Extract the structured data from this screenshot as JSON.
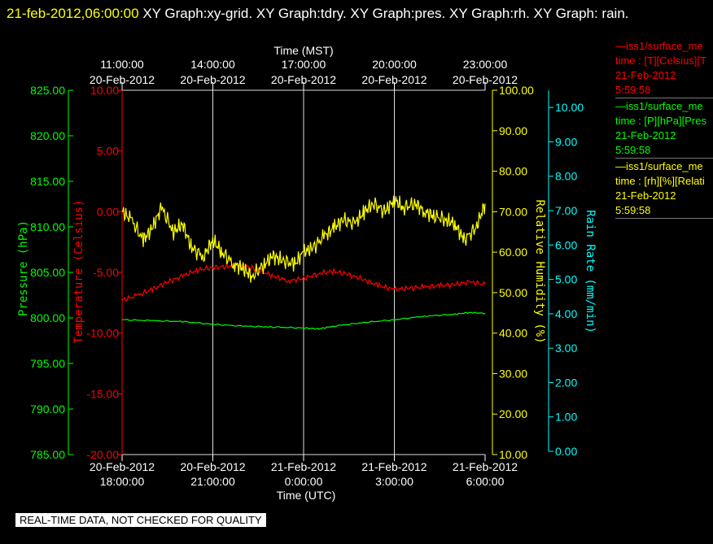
{
  "title": {
    "timestamp": "21-feb-2012,06:00:00",
    "text": " XY Graph:xy-grid.  XY Graph:tdry.  XY Graph:pres.  XY Graph:rh.  XY Graph: rain."
  },
  "banner": "REAL-TIME DATA, NOT CHECKED FOR QUALITY",
  "legend": [
    {
      "line1": "—iss1/surface_me",
      "line2": "time : [T][Celsius][T",
      "date": "21-Feb-2012",
      "time": "5:59:58",
      "color": "#ff0000"
    },
    {
      "line1": "—iss1/surface_me",
      "line2": "time : [P][hPa][Pres",
      "date": "21-Feb-2012",
      "time": "5:59:58",
      "color": "#00ff00"
    },
    {
      "line1": "—iss1/surface_me",
      "line2": "time : [rh][%][Relati",
      "date": "21-Feb-2012",
      "time": "5:59:58",
      "color": "#ffff00"
    }
  ],
  "chart_data": {
    "type": "line",
    "xlabel_top": "Time (MST)",
    "xlabel_bottom": "Time (UTC)",
    "x_range_utc": [
      "20-Feb-2012 18:00:00",
      "21-Feb-2012 6:00:00"
    ],
    "top_ticks": [
      {
        "time": "11:00:00",
        "date": "20-Feb-2012"
      },
      {
        "time": "14:00:00",
        "date": "20-Feb-2012"
      },
      {
        "time": "17:00:00",
        "date": "20-Feb-2012"
      },
      {
        "time": "20:00:00",
        "date": "20-Feb-2012"
      },
      {
        "time": "23:00:00",
        "date": "20-Feb-2012"
      }
    ],
    "bottom_ticks": [
      {
        "date": "20-Feb-2012",
        "time": "18:00:00"
      },
      {
        "date": "20-Feb-2012",
        "time": "21:00:00"
      },
      {
        "date": "21-Feb-2012",
        "time": "0:00:00"
      },
      {
        "date": "21-Feb-2012",
        "time": "3:00:00"
      },
      {
        "date": "21-Feb-2012",
        "time": "6:00:00"
      }
    ],
    "axes": {
      "pressure": {
        "label": "Pressure (hPa)",
        "color": "#00ff00",
        "range": [
          785,
          825
        ],
        "ticks": [
          "785.00",
          "790.00",
          "795.00",
          "800.00",
          "805.00",
          "810.00",
          "815.00",
          "820.00",
          "825.00"
        ]
      },
      "temperature": {
        "label": "Temperature (Celsius)",
        "color": "#ff0000",
        "range": [
          -20,
          10
        ],
        "ticks": [
          "-20.00",
          "-15.00",
          "-10.00",
          "-5.00",
          "0.00",
          "5.00",
          "10.00"
        ]
      },
      "humidity": {
        "label": "Relative Humidity (%)",
        "color": "#ffff00",
        "range": [
          10,
          100
        ],
        "ticks": [
          "10.00",
          "20.00",
          "30.00",
          "40.00",
          "50.00",
          "60.00",
          "70.00",
          "80.00",
          "90.00",
          "100.00"
        ]
      },
      "rain": {
        "label": "Rain Rate (mm/min)",
        "color": "#00ffff",
        "range": [
          0,
          10.5
        ],
        "ticks": [
          "0.00",
          "1.00",
          "2.00",
          "3.00",
          "4.00",
          "5.00",
          "6.00",
          "7.00",
          "8.00",
          "9.00",
          "10.00"
        ]
      }
    },
    "series": [
      {
        "name": "T",
        "color": "#ff0000",
        "axis": "temperature",
        "x_hours": [
          0,
          0.5,
          1,
          1.5,
          2,
          2.5,
          3,
          3.5,
          4,
          4.5,
          5,
          5.5,
          6,
          6.5,
          7,
          7.5,
          8,
          8.5,
          9,
          9.5,
          10,
          10.5,
          11,
          11.5,
          12
        ],
        "values": [
          -7.3,
          -6.9,
          -6.4,
          -5.8,
          -5.3,
          -4.8,
          -4.6,
          -4.5,
          -4.4,
          -4.8,
          -5.3,
          -5.7,
          -5.5,
          -5.1,
          -4.9,
          -5.2,
          -5.6,
          -6.1,
          -6.4,
          -6.3,
          -6.2,
          -6.1,
          -6.0,
          -5.8,
          -6.0
        ]
      },
      {
        "name": "P",
        "color": "#00ff00",
        "axis": "pressure",
        "x_hours": [
          0,
          1,
          2,
          3,
          4,
          5,
          6,
          6.5,
          7,
          8,
          9,
          10,
          11,
          11.5,
          12
        ],
        "values": [
          799.8,
          799.7,
          799.6,
          799.3,
          799.1,
          799.0,
          798.9,
          798.8,
          799.1,
          799.5,
          799.8,
          800.2,
          800.4,
          800.6,
          800.5
        ]
      },
      {
        "name": "RH",
        "color": "#ffff00",
        "axis": "humidity",
        "x_hours": [
          0,
          0.3,
          0.7,
          1,
          1.3,
          1.7,
          2,
          2.3,
          2.7,
          3,
          3.3,
          3.7,
          4,
          4.3,
          4.7,
          5,
          5.3,
          5.7,
          6,
          6.3,
          6.7,
          7,
          7.3,
          7.7,
          8,
          8.3,
          8.7,
          9,
          9.3,
          9.7,
          10,
          10.3,
          10.7,
          11,
          11.3,
          11.7,
          12
        ],
        "values": [
          70,
          68,
          63,
          66,
          71,
          65,
          67,
          61,
          59,
          63,
          60,
          57,
          56,
          54,
          57,
          59,
          58,
          57,
          60,
          61,
          64,
          66,
          68,
          67,
          70,
          72,
          70,
          73,
          71,
          72,
          70,
          69,
          68,
          67,
          63,
          66,
          72
        ]
      },
      {
        "name": "Rain",
        "color": "#00ffff",
        "axis": "rain",
        "x_hours": [],
        "values": []
      }
    ]
  }
}
